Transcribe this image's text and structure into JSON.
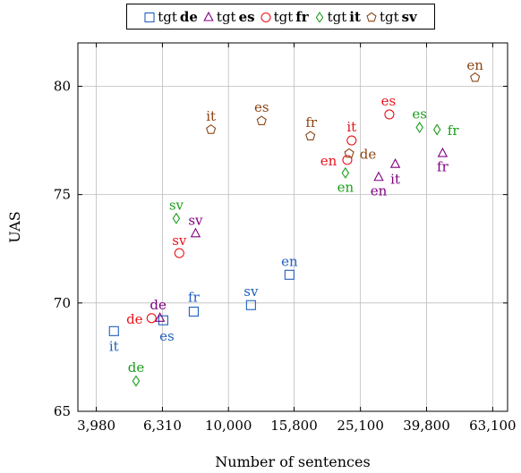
{
  "chart_data": {
    "type": "scatter",
    "xlabel": "Number of sentences",
    "ylabel": "UAS",
    "xscale": "log",
    "xlim": [
      3500,
      70000
    ],
    "ylim": [
      65,
      82
    ],
    "xticks": [
      3980,
      6310,
      10000,
      15800,
      25100,
      39800,
      63100
    ],
    "xtick_labels": [
      "3,980",
      "6,310",
      "10,000",
      "15,800",
      "25,100",
      "39,800",
      "63,100"
    ],
    "yticks": [
      65,
      70,
      75,
      80
    ],
    "ytick_labels": [
      "65",
      "70",
      "75",
      "80"
    ],
    "grid": true,
    "legend_position": "top",
    "series": [
      {
        "name": "tgt de",
        "legend_prefix": "tgt",
        "legend_lang": "de",
        "color": "#1f5fbf",
        "marker": "square",
        "points": [
          {
            "label": "it",
            "x": 4500,
            "y": 68.7
          },
          {
            "label": "es",
            "x": 6350,
            "y": 69.2
          },
          {
            "label": "fr",
            "x": 7850,
            "y": 69.6
          },
          {
            "label": "sv",
            "x": 11700,
            "y": 69.9
          },
          {
            "label": "en",
            "x": 15300,
            "y": 71.3
          }
        ]
      },
      {
        "name": "tgt es",
        "legend_prefix": "tgt",
        "legend_lang": "es",
        "color": "#800080",
        "marker": "triangle",
        "points": [
          {
            "label": "de",
            "x": 6200,
            "y": 69.3
          },
          {
            "label": "sv",
            "x": 7950,
            "y": 73.2
          },
          {
            "label": "en",
            "x": 28500,
            "y": 75.8
          },
          {
            "label": "it",
            "x": 32000,
            "y": 76.4
          },
          {
            "label": "fr",
            "x": 44500,
            "y": 76.9
          }
        ]
      },
      {
        "name": "tgt fr",
        "legend_prefix": "tgt",
        "legend_lang": "fr",
        "color": "#e8141c",
        "marker": "circle",
        "points": [
          {
            "label": "de",
            "x": 5850,
            "y": 69.3
          },
          {
            "label": "sv",
            "x": 7100,
            "y": 72.3
          },
          {
            "label": "en",
            "x": 22900,
            "y": 76.6
          },
          {
            "label": "it",
            "x": 23600,
            "y": 77.5
          },
          {
            "label": "es",
            "x": 30700,
            "y": 78.7
          }
        ]
      },
      {
        "name": "tgt it",
        "legend_prefix": "tgt",
        "legend_lang": "it",
        "color": "#1a9e1a",
        "marker": "diamond",
        "points": [
          {
            "label": "de",
            "x": 5250,
            "y": 66.4
          },
          {
            "label": "sv",
            "x": 6950,
            "y": 73.9
          },
          {
            "label": "en",
            "x": 22600,
            "y": 76.0
          },
          {
            "label": "es",
            "x": 37900,
            "y": 78.1
          },
          {
            "label": "fr",
            "x": 42800,
            "y": 78.0
          }
        ]
      },
      {
        "name": "tgt sv",
        "legend_prefix": "tgt",
        "legend_lang": "sv",
        "color": "#8b4513",
        "marker": "pentagon",
        "points": [
          {
            "label": "it",
            "x": 8850,
            "y": 78.0
          },
          {
            "label": "es",
            "x": 12600,
            "y": 78.4
          },
          {
            "label": "fr",
            "x": 17700,
            "y": 77.7
          },
          {
            "label": "de",
            "x": 23200,
            "y": 76.9
          },
          {
            "label": "en",
            "x": 55800,
            "y": 80.4
          }
        ]
      }
    ]
  }
}
